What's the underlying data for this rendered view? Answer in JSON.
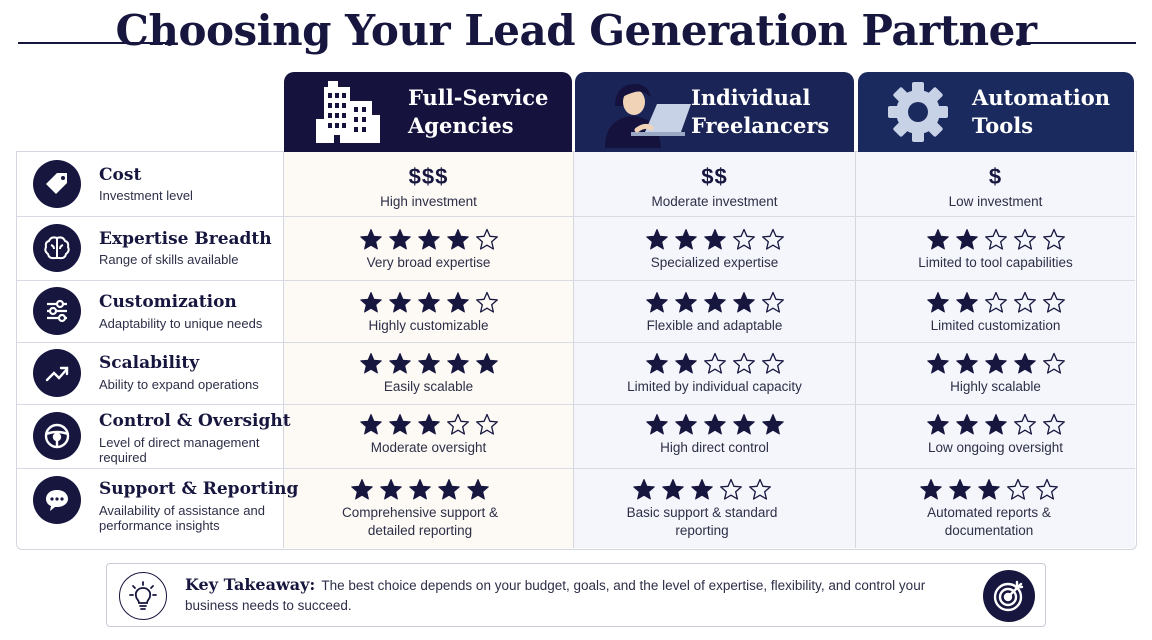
{
  "title": "Choosing Your Lead Generation Partner",
  "colors": {
    "navy": "#16163f",
    "agency_bg": "#fdf9f4",
    "free_bg": "#f4f6fb",
    "tool_bg": "#f4f6fb"
  },
  "columns": [
    {
      "label_line1": "Full-Service",
      "label_line2": "Agencies",
      "icon": "building-icon"
    },
    {
      "label_line1": "Individual",
      "label_line2": "Freelancers",
      "icon": "person-laptop-icon"
    },
    {
      "label_line1": "Automation",
      "label_line2": "Tools",
      "icon": "gear-icon"
    }
  ],
  "criteria": [
    {
      "name": "Cost",
      "subtitle": "Investment level",
      "icon": "price-tag-icon",
      "cells": [
        {
          "price": "$$$",
          "text": "High investment"
        },
        {
          "price": "$$",
          "text": "Moderate investment"
        },
        {
          "price": "$",
          "text": "Low investment"
        }
      ]
    },
    {
      "name": "Expertise Breadth",
      "subtitle": "Range of skills available",
      "icon": "brain-icon",
      "cells": [
        {
          "rating": 4,
          "text": "Very broad expertise"
        },
        {
          "rating": 3,
          "text": "Specialized expertise"
        },
        {
          "rating": 2,
          "text": "Limited to tool capabilities"
        }
      ]
    },
    {
      "name": "Customization",
      "subtitle": "Adaptability to unique needs",
      "icon": "sliders-icon",
      "cells": [
        {
          "rating": 4,
          "text": "Highly customizable"
        },
        {
          "rating": 4,
          "text": "Flexible and adaptable"
        },
        {
          "rating": 2,
          "text": "Limited customization"
        }
      ]
    },
    {
      "name": "Scalability",
      "subtitle": "Ability to expand operations",
      "icon": "trend-up-icon",
      "cells": [
        {
          "rating": 5,
          "text": "Easily scalable"
        },
        {
          "rating": 2,
          "text": "Limited by individual capacity"
        },
        {
          "rating": 4,
          "text": "Highly scalable"
        }
      ]
    },
    {
      "name": "Control & Oversight",
      "subtitle": "Level of direct management required",
      "icon": "steering-wheel-icon",
      "cells": [
        {
          "rating": 3,
          "text": "Moderate oversight"
        },
        {
          "rating": 5,
          "text": "High direct control"
        },
        {
          "rating": 3,
          "text": "Low ongoing oversight"
        }
      ]
    },
    {
      "name": "Support & Reporting",
      "subtitle": "Availability of assistance and performance insights",
      "icon": "chat-bubble-icon",
      "cells": [
        {
          "rating": 5,
          "text": "Comprehensive support & detailed reporting"
        },
        {
          "rating": 3,
          "text": "Basic support & standard reporting"
        },
        {
          "rating": 3,
          "text": "Automated reports & documentation"
        }
      ]
    }
  ],
  "takeaway": {
    "label": "Key Takeaway:",
    "text": "The best choice depends on your budget, goals, and the level of expertise, flexibility, and control your business needs to succeed.",
    "icons": [
      "lightbulb-icon",
      "target-icon"
    ]
  }
}
